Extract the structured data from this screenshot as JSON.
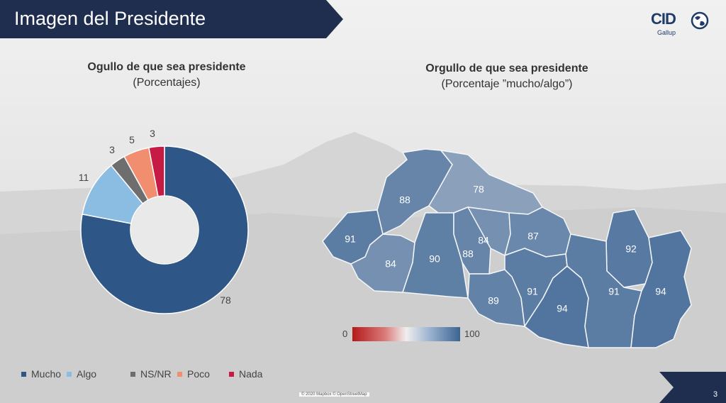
{
  "header": {
    "title": "Imagen del Presidente"
  },
  "logo": {
    "name": "CID",
    "sub": "Gallup"
  },
  "colors": {
    "navy": "#1f2e4f",
    "mucho": "#2e5687",
    "algo": "#8bbde3",
    "nsnr": "#6e6e6e",
    "poco": "#f28e70",
    "nada": "#c51b45"
  },
  "left_chart": {
    "title": "Ogullo de que sea presidente",
    "subtitle": "(Porcentajes)"
  },
  "right_chart": {
    "title": "Orgullo de que sea presidente",
    "subtitle": "(Porcentaje ”mucho/algo”)"
  },
  "chart_data": [
    {
      "type": "pie",
      "title": "Ogullo de que sea presidente",
      "subtitle": "(Porcentajes)",
      "categories": [
        "Mucho",
        "Algo",
        "NS/NR",
        "Poco",
        "Nada"
      ],
      "values": [
        78,
        11,
        3,
        5,
        3
      ],
      "colors": [
        "#2e5687",
        "#8bbde3",
        "#6e6e6e",
        "#f28e70",
        "#c51b45"
      ],
      "legend_position": "bottom"
    },
    {
      "type": "heatmap",
      "title": "Orgullo de que sea presidente",
      "subtitle": "(Porcentaje ”mucho/algo”)",
      "region_values": [
        91,
        88,
        78,
        84,
        90,
        88,
        84,
        87,
        89,
        91,
        94,
        92,
        91,
        94
      ],
      "scale_min": 0,
      "scale_max": 100,
      "scale_colors": [
        "#b5191b",
        "#f1eeee",
        "#3b6493"
      ]
    }
  ],
  "scale": {
    "min": "0",
    "max": "100"
  },
  "credit": "© 2020 Mapbox © OpenStreetMap",
  "page": {
    "number": "3"
  }
}
